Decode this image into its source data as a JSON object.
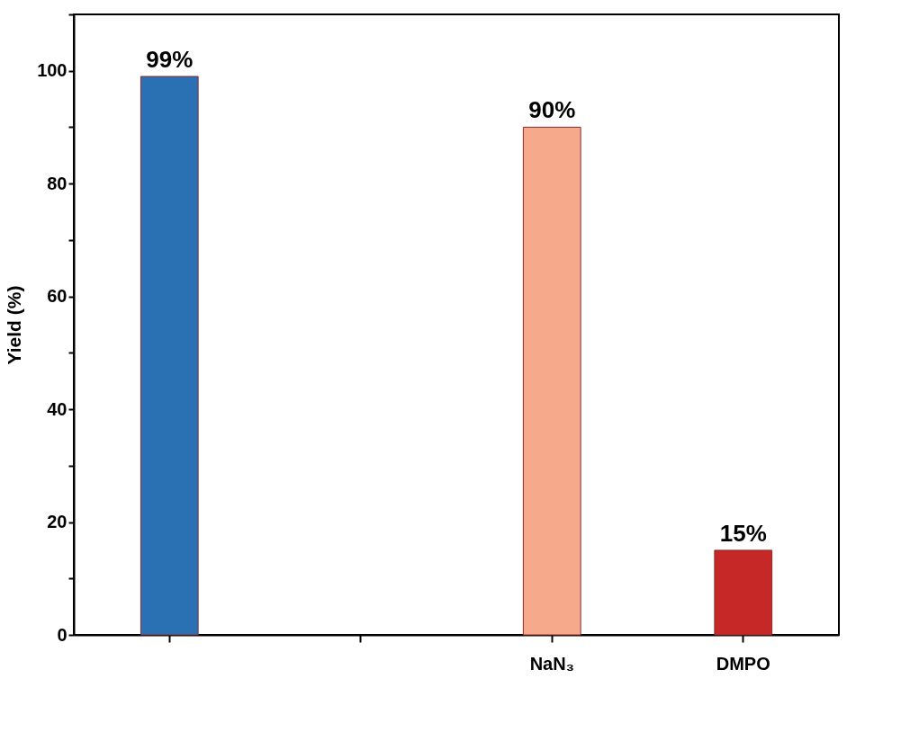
{
  "chart_data": {
    "type": "bar",
    "ylabel": "Yield (%)",
    "categories": [
      null,
      null,
      "NaN₃",
      "DMPO"
    ],
    "values": [
      99,
      null,
      90,
      15
    ],
    "colors": [
      "#2a71b3",
      null,
      "#f6aa8b",
      "#c62828"
    ],
    "value_labels": [
      "99%",
      null,
      "90%",
      "15%"
    ],
    "ylim": [
      0,
      110
    ],
    "yticks": [
      0,
      {
        "value": 10,
        "label": null
      },
      20,
      {
        "value": 30,
        "label": null
      },
      40,
      {
        "value": 50,
        "label": null
      },
      60,
      {
        "value": 70,
        "label": null
      },
      80,
      {
        "value": 90,
        "label": null
      },
      100,
      {
        "value": 110,
        "label": null
      }
    ],
    "grid": false
  }
}
